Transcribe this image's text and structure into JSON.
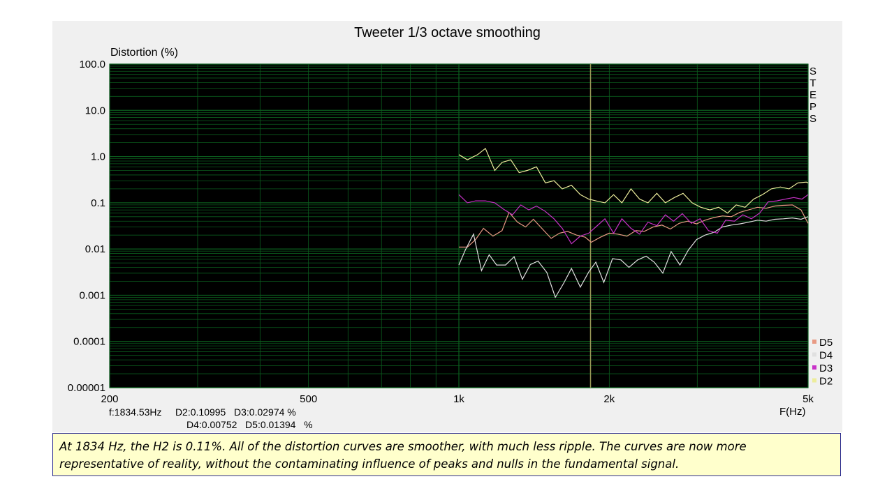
{
  "slide": {
    "caption": "At 1834 Hz, the H2 is 0.11%. All of the distortion curves are smoother, with much less ripple.  The curves are now more representative of reality, without the contaminating influence of peaks and nulls in the fundamental signal."
  },
  "readout": {
    "line1": "f:1834.53Hz     D2:0.10995   D3:0.02974 %",
    "line2": "D4:0.00752   D5:0.01394   %"
  },
  "colors": {
    "plot_bg": "#000000",
    "grid": "#0b5d1e",
    "cursor": "#9a9a58",
    "D2": "#eded9c",
    "D3": "#c832c8",
    "D4": "#e0e0e0",
    "D5": "#e89a84"
  },
  "chart_data": {
    "type": "line",
    "title": "Tweeter  1/3 octave smoothing",
    "ylabel": "Distortion (%)",
    "xlabel": "F(Hz)",
    "x_scale": "log",
    "y_scale": "log",
    "xlim": [
      200,
      5000
    ],
    "ylim": [
      1e-05,
      100
    ],
    "x_ticks": [
      {
        "value": 200,
        "label": "200"
      },
      {
        "value": 500,
        "label": "500"
      },
      {
        "value": 1000,
        "label": "1k"
      },
      {
        "value": 2000,
        "label": "2k"
      },
      {
        "value": 5000,
        "label": "5k"
      }
    ],
    "y_ticks": [
      {
        "value": 100,
        "label": "100.0"
      },
      {
        "value": 10,
        "label": "10.0"
      },
      {
        "value": 1,
        "label": "1.0"
      },
      {
        "value": 0.1,
        "label": "0.1"
      },
      {
        "value": 0.01,
        "label": "0.01"
      },
      {
        "value": 0.001,
        "label": "0.001"
      },
      {
        "value": 0.0001,
        "label": "0.0001"
      },
      {
        "value": 1e-05,
        "label": "0.00001"
      }
    ],
    "side_label": [
      "S",
      "T",
      "E",
      "P",
      "S"
    ],
    "cursor_x": 1834.53,
    "grid": true,
    "legend_position": "bottom-right",
    "series": [
      {
        "name": "D5",
        "color": "#e89a84",
        "points": [
          [
            1000,
            0.011
          ],
          [
            1040,
            0.011
          ],
          [
            1080,
            0.016
          ],
          [
            1120,
            0.028
          ],
          [
            1170,
            0.019
          ],
          [
            1220,
            0.025
          ],
          [
            1260,
            0.062
          ],
          [
            1310,
            0.038
          ],
          [
            1360,
            0.03
          ],
          [
            1410,
            0.044
          ],
          [
            1470,
            0.027
          ],
          [
            1530,
            0.017
          ],
          [
            1590,
            0.022
          ],
          [
            1650,
            0.024
          ],
          [
            1720,
            0.02
          ],
          [
            1790,
            0.018
          ],
          [
            1840,
            0.014
          ],
          [
            1920,
            0.018
          ],
          [
            2000,
            0.022
          ],
          [
            2080,
            0.021
          ],
          [
            2170,
            0.019
          ],
          [
            2260,
            0.025
          ],
          [
            2350,
            0.024
          ],
          [
            2450,
            0.03
          ],
          [
            2550,
            0.033
          ],
          [
            2650,
            0.027
          ],
          [
            2760,
            0.036
          ],
          [
            2870,
            0.04
          ],
          [
            2990,
            0.035
          ],
          [
            3110,
            0.042
          ],
          [
            3240,
            0.048
          ],
          [
            3370,
            0.052
          ],
          [
            3510,
            0.05
          ],
          [
            3650,
            0.062
          ],
          [
            3800,
            0.07
          ],
          [
            3960,
            0.08
          ],
          [
            4120,
            0.076
          ],
          [
            4290,
            0.085
          ],
          [
            4460,
            0.088
          ],
          [
            4650,
            0.09
          ],
          [
            4840,
            0.07
          ],
          [
            5000,
            0.036
          ]
        ]
      },
      {
        "name": "D4",
        "color": "#e0e0e0",
        "points": [
          [
            1000,
            0.0045
          ],
          [
            1030,
            0.0095
          ],
          [
            1070,
            0.021
          ],
          [
            1110,
            0.0034
          ],
          [
            1150,
            0.0075
          ],
          [
            1190,
            0.0045
          ],
          [
            1240,
            0.0045
          ],
          [
            1290,
            0.0068
          ],
          [
            1340,
            0.0022
          ],
          [
            1390,
            0.0046
          ],
          [
            1440,
            0.0055
          ],
          [
            1500,
            0.0031
          ],
          [
            1560,
            0.0009
          ],
          [
            1620,
            0.0018
          ],
          [
            1680,
            0.0038
          ],
          [
            1750,
            0.0015
          ],
          [
            1820,
            0.0032
          ],
          [
            1880,
            0.0052
          ],
          [
            1950,
            0.0019
          ],
          [
            2030,
            0.0062
          ],
          [
            2110,
            0.0058
          ],
          [
            2190,
            0.004
          ],
          [
            2280,
            0.0058
          ],
          [
            2370,
            0.007
          ],
          [
            2460,
            0.0052
          ],
          [
            2560,
            0.003
          ],
          [
            2660,
            0.0088
          ],
          [
            2770,
            0.0045
          ],
          [
            2880,
            0.0095
          ],
          [
            2990,
            0.016
          ],
          [
            3110,
            0.02
          ],
          [
            3240,
            0.023
          ],
          [
            3370,
            0.03
          ],
          [
            3510,
            0.033
          ],
          [
            3650,
            0.035
          ],
          [
            3800,
            0.038
          ],
          [
            3960,
            0.042
          ],
          [
            4120,
            0.04
          ],
          [
            4290,
            0.044
          ],
          [
            4460,
            0.045
          ],
          [
            4650,
            0.047
          ],
          [
            4840,
            0.044
          ],
          [
            5000,
            0.05
          ]
        ]
      },
      {
        "name": "D3",
        "color": "#c832c8",
        "points": [
          [
            1000,
            0.15
          ],
          [
            1040,
            0.1
          ],
          [
            1080,
            0.11
          ],
          [
            1130,
            0.11
          ],
          [
            1180,
            0.1
          ],
          [
            1230,
            0.072
          ],
          [
            1280,
            0.055
          ],
          [
            1330,
            0.09
          ],
          [
            1380,
            0.07
          ],
          [
            1430,
            0.085
          ],
          [
            1490,
            0.065
          ],
          [
            1550,
            0.045
          ],
          [
            1610,
            0.028
          ],
          [
            1680,
            0.013
          ],
          [
            1750,
            0.019
          ],
          [
            1820,
            0.022
          ],
          [
            1880,
            0.03
          ],
          [
            1960,
            0.045
          ],
          [
            2040,
            0.022
          ],
          [
            2120,
            0.045
          ],
          [
            2210,
            0.028
          ],
          [
            2300,
            0.021
          ],
          [
            2390,
            0.038
          ],
          [
            2490,
            0.032
          ],
          [
            2590,
            0.055
          ],
          [
            2690,
            0.04
          ],
          [
            2800,
            0.058
          ],
          [
            2920,
            0.036
          ],
          [
            3040,
            0.045
          ],
          [
            3160,
            0.025
          ],
          [
            3290,
            0.022
          ],
          [
            3420,
            0.042
          ],
          [
            3560,
            0.04
          ],
          [
            3700,
            0.055
          ],
          [
            3850,
            0.045
          ],
          [
            4000,
            0.06
          ],
          [
            4160,
            0.105
          ],
          [
            4330,
            0.11
          ],
          [
            4500,
            0.12
          ],
          [
            4680,
            0.13
          ],
          [
            4860,
            0.12
          ],
          [
            5000,
            0.15
          ]
        ]
      },
      {
        "name": "D2",
        "color": "#eded9c",
        "points": [
          [
            1000,
            1.1
          ],
          [
            1040,
            0.85
          ],
          [
            1090,
            1.1
          ],
          [
            1130,
            1.5
          ],
          [
            1180,
            0.5
          ],
          [
            1220,
            0.75
          ],
          [
            1270,
            0.85
          ],
          [
            1320,
            0.45
          ],
          [
            1370,
            0.5
          ],
          [
            1430,
            0.6
          ],
          [
            1490,
            0.27
          ],
          [
            1550,
            0.3
          ],
          [
            1610,
            0.2
          ],
          [
            1680,
            0.24
          ],
          [
            1750,
            0.15
          ],
          [
            1820,
            0.12
          ],
          [
            1880,
            0.11
          ],
          [
            1960,
            0.1
          ],
          [
            2040,
            0.15
          ],
          [
            2120,
            0.1
          ],
          [
            2210,
            0.2
          ],
          [
            2300,
            0.12
          ],
          [
            2390,
            0.1
          ],
          [
            2490,
            0.16
          ],
          [
            2590,
            0.1
          ],
          [
            2700,
            0.13
          ],
          [
            2810,
            0.16
          ],
          [
            2930,
            0.1
          ],
          [
            3050,
            0.08
          ],
          [
            3180,
            0.07
          ],
          [
            3310,
            0.08
          ],
          [
            3450,
            0.06
          ],
          [
            3590,
            0.09
          ],
          [
            3740,
            0.08
          ],
          [
            3890,
            0.12
          ],
          [
            4050,
            0.15
          ],
          [
            4220,
            0.2
          ],
          [
            4400,
            0.22
          ],
          [
            4580,
            0.2
          ],
          [
            4770,
            0.27
          ],
          [
            4960,
            0.28
          ],
          [
            5000,
            0.27
          ]
        ]
      }
    ]
  }
}
